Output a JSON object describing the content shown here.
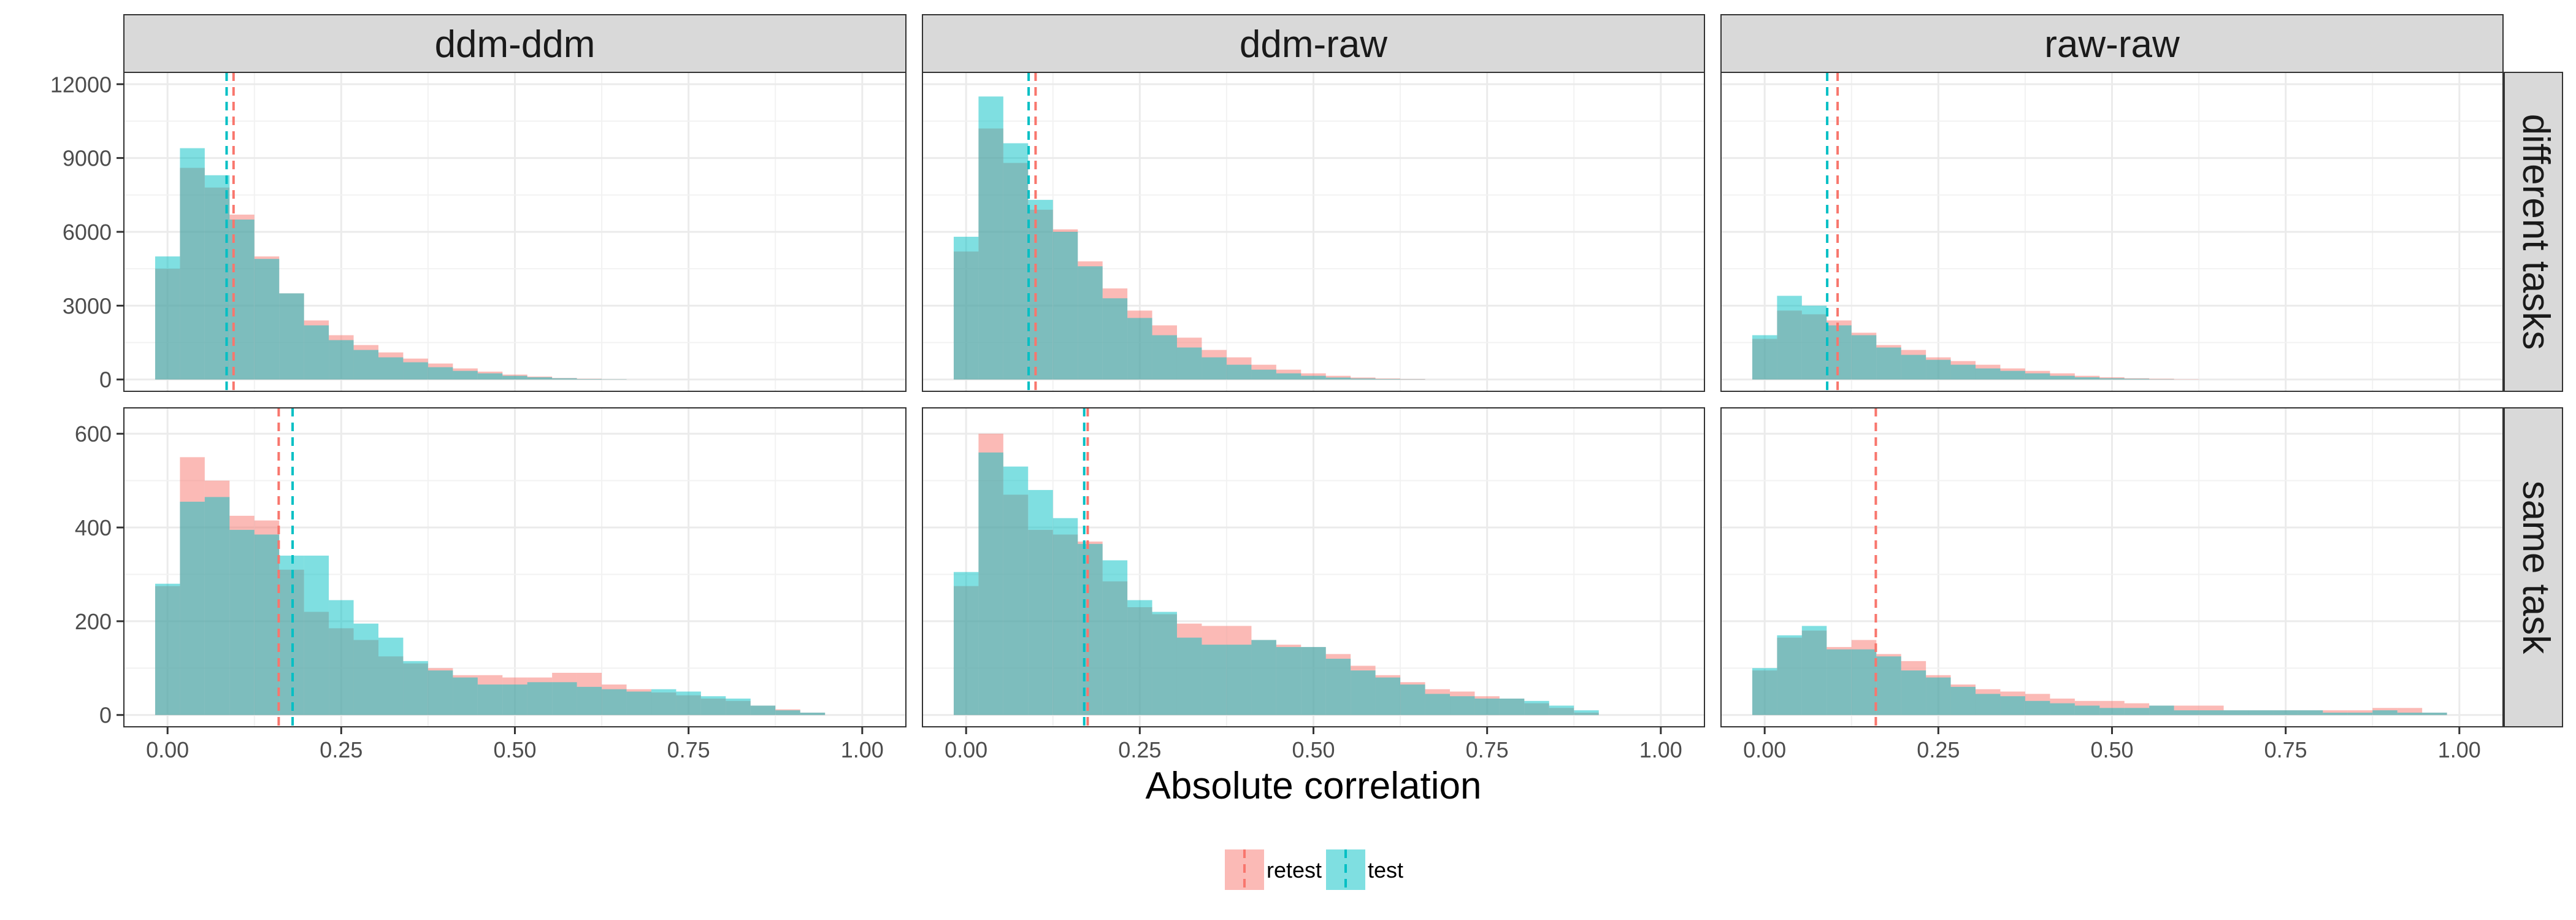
{
  "chart_data": {
    "type": "bar",
    "subtype": "faceted overlapping histogram",
    "xlabel": "Absolute correlation",
    "facet_columns": [
      "ddm-ddm",
      "ddm-raw",
      "raw-raw"
    ],
    "facet_rows": [
      "different tasks",
      "same task"
    ],
    "xlim": [
      0,
      1
    ],
    "x_ticks": [
      0,
      0.25,
      0.5,
      0.75,
      1
    ],
    "x_tick_labels": [
      "0.00",
      "0.25",
      "0.50",
      "0.75",
      "1.00"
    ],
    "row_axes": [
      {
        "ylim": [
          0,
          12000
        ],
        "y_ticks": [
          0,
          3000,
          6000,
          9000,
          12000
        ],
        "y_tick_labels": [
          "0",
          "3000",
          "6000",
          "9000",
          "12000"
        ]
      },
      {
        "ylim": [
          0,
          630
        ],
        "y_ticks": [
          0,
          200,
          400,
          600
        ],
        "y_tick_labels": [
          "0",
          "200",
          "400",
          "600"
        ]
      }
    ],
    "bin_width": 0.0357,
    "bin_centers": [
      0,
      0.0357,
      0.0714,
      0.1071,
      0.1429,
      0.1786,
      0.2143,
      0.25,
      0.2857,
      0.3214,
      0.3571,
      0.3929,
      0.4286,
      0.4643,
      0.5,
      0.5357,
      0.5714,
      0.6071,
      0.6429,
      0.6786,
      0.7143,
      0.75,
      0.7857,
      0.8214,
      0.8571,
      0.8929,
      0.9286,
      0.9643,
      1.0
    ],
    "series_names": [
      "retest",
      "test"
    ],
    "colors": {
      "retest": "#F8766D",
      "test": "#00BFC4",
      "overlap": "#7FA8A8"
    },
    "grid": true,
    "legend_position": "bottom",
    "panels": [
      {
        "column": "ddm-ddm",
        "row": "different tasks",
        "retest": [
          4500,
          8600,
          7800,
          6700,
          5000,
          3500,
          2400,
          1800,
          1400,
          1100,
          850,
          650,
          450,
          320,
          200,
          120,
          60,
          30,
          10,
          0,
          0,
          0,
          0,
          0,
          0,
          0,
          0,
          0,
          0
        ],
        "test": [
          5000,
          9400,
          8300,
          6500,
          4900,
          3500,
          2200,
          1600,
          1200,
          900,
          700,
          500,
          350,
          250,
          150,
          90,
          50,
          20,
          10,
          0,
          0,
          0,
          0,
          0,
          0,
          0,
          0,
          0,
          0
        ],
        "mean_retest": 0.095,
        "mean_test": 0.085
      },
      {
        "column": "ddm-raw",
        "row": "different tasks",
        "retest": [
          5200,
          10200,
          8800,
          6900,
          6100,
          4800,
          3700,
          2800,
          2200,
          1700,
          1200,
          900,
          600,
          400,
          250,
          150,
          80,
          40,
          20,
          0,
          0,
          0,
          0,
          0,
          0,
          0,
          0,
          0,
          0
        ],
        "test": [
          5800,
          11500,
          9600,
          7300,
          6000,
          4600,
          3300,
          2500,
          1800,
          1300,
          900,
          600,
          400,
          250,
          150,
          80,
          40,
          20,
          10,
          0,
          0,
          0,
          0,
          0,
          0,
          0,
          0,
          0,
          0
        ],
        "mean_retest": 0.1,
        "mean_test": 0.09
      },
      {
        "column": "raw-raw",
        "row": "different tasks",
        "retest": [
          1650,
          2800,
          2650,
          2400,
          1900,
          1400,
          1200,
          900,
          750,
          600,
          450,
          350,
          250,
          150,
          90,
          50,
          30,
          10,
          0,
          0,
          0,
          0,
          0,
          0,
          0,
          0,
          0,
          0,
          0
        ],
        "test": [
          1800,
          3400,
          3000,
          2200,
          1800,
          1300,
          1000,
          800,
          600,
          450,
          350,
          250,
          150,
          90,
          50,
          30,
          10,
          0,
          0,
          0,
          0,
          0,
          0,
          0,
          0,
          0,
          0,
          0,
          0
        ],
        "mean_retest": 0.105,
        "mean_test": 0.09
      },
      {
        "column": "ddm-ddm",
        "row": "same task",
        "retest": [
          275,
          550,
          500,
          425,
          415,
          310,
          220,
          185,
          160,
          125,
          110,
          100,
          85,
          85,
          80,
          80,
          90,
          90,
          65,
          55,
          48,
          42,
          35,
          30,
          20,
          12,
          5,
          0,
          0
        ],
        "test": [
          280,
          455,
          465,
          395,
          385,
          340,
          340,
          245,
          195,
          165,
          115,
          95,
          80,
          65,
          65,
          70,
          70,
          60,
          55,
          50,
          55,
          50,
          40,
          35,
          20,
          10,
          5,
          0,
          0
        ],
        "mean_retest": 0.16,
        "mean_test": 0.18
      },
      {
        "column": "ddm-raw",
        "row": "same task",
        "retest": [
          275,
          600,
          470,
          395,
          385,
          370,
          285,
          230,
          215,
          195,
          190,
          190,
          160,
          150,
          145,
          130,
          105,
          85,
          70,
          55,
          50,
          40,
          35,
          25,
          15,
          5,
          0,
          0,
          0
        ],
        "test": [
          305,
          560,
          530,
          480,
          420,
          365,
          330,
          245,
          220,
          165,
          150,
          150,
          160,
          145,
          145,
          120,
          95,
          80,
          65,
          45,
          40,
          35,
          35,
          30,
          20,
          10,
          0,
          0,
          0
        ],
        "mean_retest": 0.175,
        "mean_test": 0.17
      },
      {
        "column": "raw-raw",
        "row": "same task",
        "retest": [
          95,
          165,
          180,
          145,
          160,
          130,
          115,
          85,
          65,
          55,
          50,
          45,
          35,
          30,
          30,
          25,
          20,
          20,
          20,
          10,
          10,
          10,
          10,
          10,
          10,
          15,
          15,
          5,
          0
        ],
        "test": [
          100,
          170,
          190,
          140,
          140,
          125,
          95,
          80,
          60,
          45,
          40,
          30,
          25,
          20,
          15,
          15,
          20,
          10,
          10,
          10,
          10,
          10,
          10,
          5,
          5,
          10,
          5,
          5,
          0
        ],
        "mean_retest": 0.16,
        "mean_test": null
      }
    ]
  }
}
